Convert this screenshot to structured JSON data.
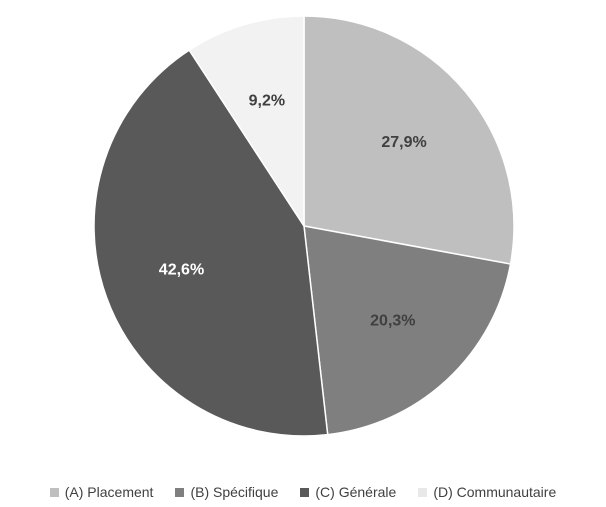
{
  "chart_data": {
    "type": "pie",
    "categories": [
      "(A) Placement",
      "(B) Spécifique",
      "(C) Générale",
      "(D) Communautaire"
    ],
    "values": [
      27.9,
      20.3,
      42.6,
      9.2
    ],
    "labels": [
      "27,9%",
      "20,3%",
      "42,6%",
      "9,2%"
    ],
    "colors": [
      "#bfbfbf",
      "#7f7f7f",
      "#595959",
      "#f2f2f2"
    ],
    "label_colors": [
      "#404040",
      "#404040",
      "#ffffff",
      "#404040"
    ],
    "legend_position": "bottom",
    "start_angle": "12 o'clock, clockwise"
  }
}
